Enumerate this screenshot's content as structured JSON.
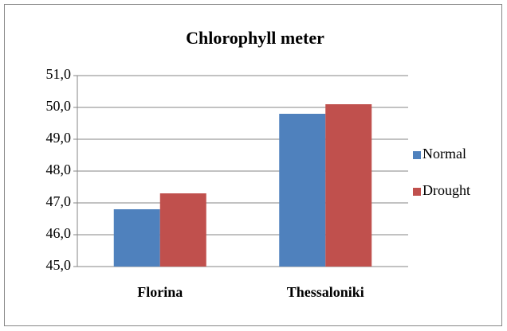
{
  "chart_data": {
    "type": "bar",
    "title": "Chlorophyll meter",
    "categories": [
      "Florina",
      "Thessaloniki"
    ],
    "series": [
      {
        "name": "Normal",
        "color": "#4f81bd",
        "values": [
          46.8,
          49.8
        ]
      },
      {
        "name": "Drought",
        "color": "#c0504d",
        "values": [
          47.3,
          50.1
        ]
      }
    ],
    "ylim": [
      45,
      51
    ],
    "yticks": [
      {
        "value": 45,
        "label": "45,0"
      },
      {
        "value": 46,
        "label": "46,0"
      },
      {
        "value": 47,
        "label": "47,0"
      },
      {
        "value": 48,
        "label": "48,0"
      },
      {
        "value": 49,
        "label": "49,0"
      },
      {
        "value": 50,
        "label": "50,0"
      },
      {
        "value": 51,
        "label": "51,0"
      }
    ],
    "grid": true,
    "legend": "right"
  }
}
